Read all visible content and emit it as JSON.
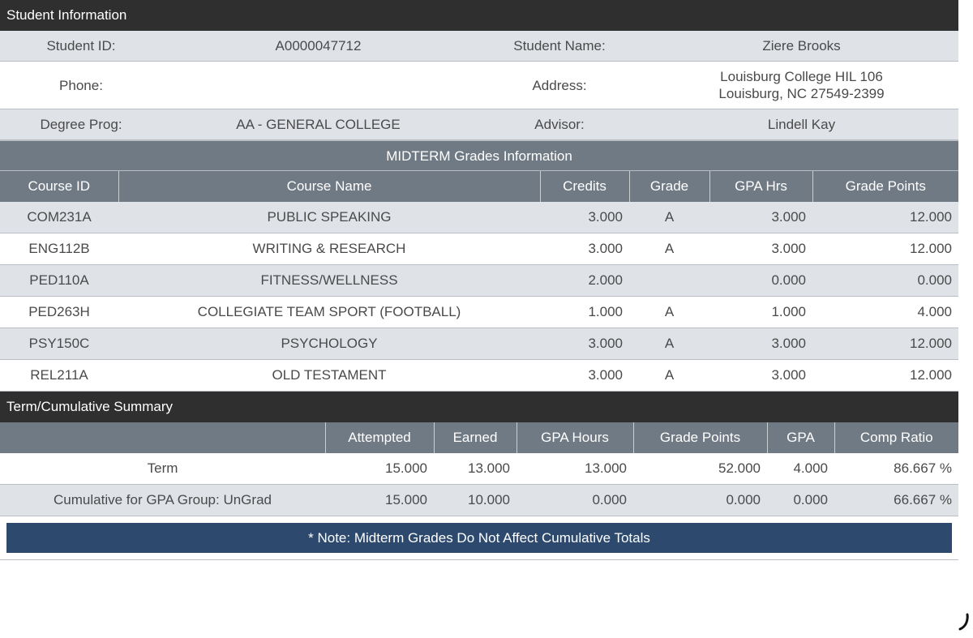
{
  "student_info": {
    "title": "Student Information",
    "id_label": "Student ID:",
    "id_value": "A0000047712",
    "name_label": "Student Name:",
    "name_value": "Ziere Brooks",
    "phone_label": "Phone:",
    "phone_value": "",
    "address_label": "Address:",
    "address_line1": "Louisburg College HIL 106",
    "address_line2": "Louisburg, NC 27549-2399",
    "degree_label": "Degree Prog:",
    "degree_value": "AA - GENERAL COLLEGE",
    "advisor_label": "Advisor:",
    "advisor_value": "Lindell Kay"
  },
  "midterm": {
    "title": "MIDTERM Grades Information",
    "headers": {
      "course_id": "Course ID",
      "course_name": "Course Name",
      "credits": "Credits",
      "grade": "Grade",
      "gpa_hrs": "GPA Hrs",
      "grade_points": "Grade Points"
    },
    "rows": [
      {
        "course_id": "COM231A",
        "course_name": "PUBLIC SPEAKING",
        "credits": "3.000",
        "grade": "A",
        "gpa_hrs": "3.000",
        "grade_points": "12.000"
      },
      {
        "course_id": "ENG112B",
        "course_name": "WRITING & RESEARCH",
        "credits": "3.000",
        "grade": "A",
        "gpa_hrs": "3.000",
        "grade_points": "12.000"
      },
      {
        "course_id": "PED110A",
        "course_name": "FITNESS/WELLNESS",
        "credits": "2.000",
        "grade": "",
        "gpa_hrs": "0.000",
        "grade_points": "0.000"
      },
      {
        "course_id": "PED263H",
        "course_name": "COLLEGIATE TEAM SPORT (FOOTBALL)",
        "credits": "1.000",
        "grade": "A",
        "gpa_hrs": "1.000",
        "grade_points": "4.000"
      },
      {
        "course_id": "PSY150C",
        "course_name": "PSYCHOLOGY",
        "credits": "3.000",
        "grade": "A",
        "gpa_hrs": "3.000",
        "grade_points": "12.000"
      },
      {
        "course_id": "REL211A",
        "course_name": "OLD TESTAMENT",
        "credits": "3.000",
        "grade": "A",
        "gpa_hrs": "3.000",
        "grade_points": "12.000"
      }
    ]
  },
  "summary": {
    "title": "Term/Cumulative Summary",
    "headers": {
      "blank": "",
      "attempted": "Attempted",
      "earned": "Earned",
      "gpa_hours": "GPA Hours",
      "grade_points": "Grade Points",
      "gpa": "GPA",
      "comp_ratio": "Comp Ratio"
    },
    "rows": [
      {
        "label": "Term",
        "attempted": "15.000",
        "earned": "13.000",
        "gpa_hours": "13.000",
        "grade_points": "52.000",
        "gpa": "4.000",
        "comp_ratio": "86.667 %"
      },
      {
        "label": "Cumulative for GPA Group: UnGrad",
        "attempted": "15.000",
        "earned": "10.000",
        "gpa_hours": "0.000",
        "grade_points": "0.000",
        "gpa": "0.000",
        "comp_ratio": "66.667 %"
      }
    ],
    "note": "* Note: Midterm Grades Do Not Affect Cumulative Totals"
  },
  "colors": {
    "dark_bar": "#2f2f2f",
    "header_gray": "#707a84",
    "row_alt": "#dfe3e8",
    "note_blue": "#2d4a6e"
  }
}
